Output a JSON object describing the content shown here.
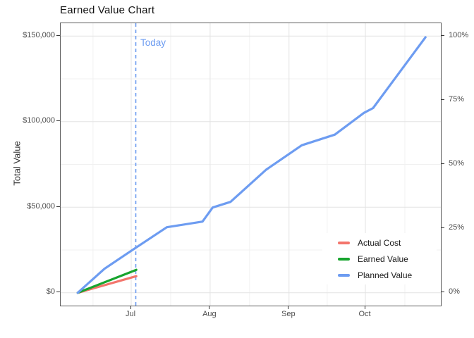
{
  "title": "Earned Value Chart",
  "y_axis": {
    "title": "Total Value",
    "ticks": [
      {
        "label": "$0",
        "value": 0
      },
      {
        "label": "$50,000",
        "value": 50000
      },
      {
        "label": "$100,000",
        "value": 100000
      },
      {
        "label": "$150,000",
        "value": 150000
      }
    ]
  },
  "y2_axis": {
    "ticks": [
      {
        "label": "0%",
        "value": 0
      },
      {
        "label": "25%",
        "value": 37500
      },
      {
        "label": "50%",
        "value": 75000
      },
      {
        "label": "75%",
        "value": 112500
      },
      {
        "label": "100%",
        "value": 150000
      }
    ]
  },
  "x_axis": {
    "ticks": [
      {
        "label": "Jul",
        "day": 30
      },
      {
        "label": "Aug",
        "day": 61
      },
      {
        "label": "Sep",
        "day": 92
      },
      {
        "label": "Oct",
        "day": 122
      }
    ]
  },
  "today": {
    "label": "Today",
    "day": 31.8,
    "color": "#6d9cf1"
  },
  "legend": [
    {
      "label": "Actual Cost",
      "color": "#f3756c"
    },
    {
      "label": "Earned Value",
      "color": "#17a42e"
    },
    {
      "label": "Planned Value",
      "color": "#6d9cf1"
    }
  ],
  "chart_data": {
    "type": "line",
    "title": "Earned Value Chart",
    "xlabel": "",
    "ylabel": "Total Value",
    "y2label_format": "percent of $150,000 total (0-100%)",
    "x_unit": "days since Jun 1 (Jul 1 = 30, Aug 1 = 61, Sep 1 = 92, Oct 1 = 122)",
    "x_domain_days": [
      2.29,
      151.64
    ],
    "y_domain": [
      -7500,
      157500
    ],
    "y_major": [
      0,
      50000,
      100000,
      150000
    ],
    "y_minor": [
      25000,
      75000,
      125000
    ],
    "x_minor_days": [
      15,
      45.5,
      76.5,
      107,
      137.5
    ],
    "grid": true,
    "legend_position": "inside bottom-right",
    "today_line": {
      "day": 31.8,
      "style": "dashed",
      "color": "#6d9cf1"
    },
    "series": [
      {
        "name": "Actual Cost",
        "color": "#f3756c",
        "days": [
          9,
          32
        ],
        "values": [
          0,
          9700
        ]
      },
      {
        "name": "Earned Value",
        "color": "#17a42e",
        "days": [
          9,
          32
        ],
        "values": [
          0,
          13400
        ]
      },
      {
        "name": "Planned Value",
        "color": "#6d9cf1",
        "days": [
          9,
          19.5,
          30,
          44,
          58,
          62,
          69,
          83,
          97,
          110,
          121.4,
          125,
          145.6
        ],
        "values": [
          0,
          14000,
          24500,
          38300,
          41600,
          49800,
          53100,
          71900,
          86200,
          92400,
          105100,
          107900,
          149300
        ]
      }
    ]
  }
}
